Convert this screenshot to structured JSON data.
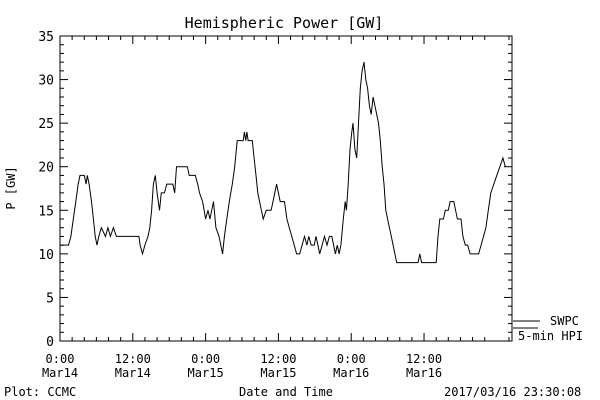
{
  "chart_data": {
    "type": "line",
    "title": "Hemispheric Power [GW]",
    "xlabel": "Date and Time",
    "ylabel": "P [GW]",
    "ylim": [
      0,
      35
    ],
    "yticks": [
      0,
      5,
      10,
      15,
      20,
      25,
      30,
      35
    ],
    "xlim_hours": [
      0,
      72
    ],
    "xticks": [
      {
        "hour": 0,
        "time": "0:00",
        "date": "Mar14"
      },
      {
        "hour": 12,
        "time": "12:00",
        "date": "Mar14"
      },
      {
        "hour": 24,
        "time": "0:00",
        "date": "Mar15"
      },
      {
        "hour": 36,
        "time": "12:00",
        "date": "Mar15"
      },
      {
        "hour": 48,
        "time": "0:00",
        "date": "Mar16"
      },
      {
        "hour": 60,
        "time": "12:00",
        "date": "Mar16"
      }
    ],
    "grid": false,
    "legend": [
      "SWPC",
      "5-min HPI"
    ],
    "legend_position": "right, outside the plot, near the bottom",
    "series": [
      {
        "name": "5-min HPI",
        "points": [
          [
            0,
            11
          ],
          [
            1.4,
            11
          ],
          [
            1.8,
            12
          ],
          [
            2.2,
            14
          ],
          [
            2.6,
            16
          ],
          [
            3,
            18
          ],
          [
            3.3,
            19
          ],
          [
            4,
            19
          ],
          [
            4.3,
            18
          ],
          [
            4.5,
            19
          ],
          [
            4.8,
            18
          ],
          [
            5.2,
            16
          ],
          [
            5.5,
            14
          ],
          [
            5.8,
            12
          ],
          [
            6.1,
            11
          ],
          [
            6.4,
            12
          ],
          [
            6.8,
            13
          ],
          [
            7.5,
            12
          ],
          [
            7.9,
            13
          ],
          [
            8.3,
            12
          ],
          [
            8.8,
            13
          ],
          [
            9.3,
            12
          ],
          [
            13,
            12
          ],
          [
            13.2,
            11
          ],
          [
            13.6,
            10
          ],
          [
            14,
            11
          ],
          [
            14.5,
            12
          ],
          [
            14.8,
            13
          ],
          [
            15.1,
            15
          ],
          [
            15.4,
            18
          ],
          [
            15.7,
            19
          ],
          [
            16,
            17
          ],
          [
            16.4,
            15
          ],
          [
            16.7,
            17
          ],
          [
            17.2,
            17
          ],
          [
            17.6,
            18
          ],
          [
            18.6,
            18
          ],
          [
            18.9,
            17
          ],
          [
            19.2,
            20
          ],
          [
            21,
            20
          ],
          [
            21.3,
            19
          ],
          [
            22.3,
            19
          ],
          [
            22.7,
            18
          ],
          [
            23,
            17
          ],
          [
            23.5,
            16
          ],
          [
            24,
            14
          ],
          [
            24.4,
            15
          ],
          [
            24.7,
            14
          ],
          [
            25,
            15
          ],
          [
            25.3,
            16
          ],
          [
            25.7,
            13
          ],
          [
            26.2,
            12
          ],
          [
            26.5,
            11
          ],
          [
            26.8,
            10
          ],
          [
            27.1,
            12
          ],
          [
            27.5,
            14
          ],
          [
            27.9,
            16
          ],
          [
            28.4,
            18
          ],
          [
            28.8,
            20
          ],
          [
            29.2,
            23
          ],
          [
            30.2,
            23
          ],
          [
            30.4,
            24
          ],
          [
            30.6,
            23
          ],
          [
            30.8,
            24
          ],
          [
            31,
            23
          ],
          [
            31.7,
            23
          ],
          [
            32,
            21
          ],
          [
            32.3,
            19
          ],
          [
            32.6,
            17
          ],
          [
            32.9,
            16
          ],
          [
            33.2,
            15
          ],
          [
            33.5,
            14
          ],
          [
            34,
            15
          ],
          [
            34.4,
            15
          ],
          [
            34.8,
            15
          ],
          [
            35.1,
            16
          ],
          [
            35.4,
            17
          ],
          [
            35.7,
            18
          ],
          [
            36,
            17
          ],
          [
            36.3,
            16
          ],
          [
            36.6,
            16
          ],
          [
            37,
            16
          ],
          [
            37.4,
            14
          ],
          [
            37.8,
            13
          ],
          [
            38.2,
            12
          ],
          [
            38.6,
            11
          ],
          [
            39,
            10
          ],
          [
            39.5,
            10
          ],
          [
            39.9,
            11
          ],
          [
            40.3,
            12
          ],
          [
            40.7,
            11
          ],
          [
            41,
            12
          ],
          [
            41.4,
            11
          ],
          [
            41.9,
            11
          ],
          [
            42.2,
            12
          ],
          [
            42.5,
            11
          ],
          [
            42.8,
            10
          ],
          [
            43.2,
            11
          ],
          [
            43.6,
            12
          ],
          [
            44,
            11
          ],
          [
            44.4,
            12
          ],
          [
            44.8,
            12
          ],
          [
            45.1,
            11
          ],
          [
            45.4,
            10
          ],
          [
            45.7,
            11
          ],
          [
            46,
            10
          ],
          [
            46.3,
            11
          ],
          [
            46.7,
            14
          ],
          [
            47,
            16
          ],
          [
            47.2,
            15
          ],
          [
            47.5,
            18
          ],
          [
            47.8,
            22
          ],
          [
            48.1,
            24
          ],
          [
            48.3,
            25
          ],
          [
            48.6,
            22
          ],
          [
            48.9,
            21
          ],
          [
            49.2,
            25
          ],
          [
            49.5,
            29
          ],
          [
            49.8,
            31
          ],
          [
            50.1,
            32
          ],
          [
            50.4,
            30
          ],
          [
            50.7,
            29
          ],
          [
            51,
            27
          ],
          [
            51.3,
            26
          ],
          [
            51.6,
            28
          ],
          [
            51.9,
            27
          ],
          [
            52.2,
            26
          ],
          [
            52.5,
            25
          ],
          [
            52.8,
            23
          ],
          [
            53.1,
            20
          ],
          [
            53.4,
            18
          ],
          [
            53.7,
            15
          ],
          [
            54,
            14
          ],
          [
            54.3,
            13
          ],
          [
            54.6,
            12
          ],
          [
            54.9,
            11
          ],
          [
            55.2,
            10
          ],
          [
            55.5,
            9
          ],
          [
            59,
            9
          ],
          [
            59.3,
            10
          ],
          [
            59.6,
            9
          ],
          [
            62,
            9
          ],
          [
            62.3,
            12
          ],
          [
            62.6,
            14
          ],
          [
            63.2,
            14
          ],
          [
            63.5,
            15
          ],
          [
            64,
            15
          ],
          [
            64.3,
            16
          ],
          [
            64.9,
            16
          ],
          [
            65.2,
            15
          ],
          [
            65.5,
            14
          ],
          [
            66.1,
            14
          ],
          [
            66.4,
            12
          ],
          [
            66.8,
            11
          ],
          [
            67.2,
            11
          ],
          [
            67.6,
            10
          ],
          [
            69,
            10
          ],
          [
            69.4,
            11
          ],
          [
            69.8,
            12
          ],
          [
            70.2,
            13
          ],
          [
            70.6,
            15
          ],
          [
            71,
            17
          ],
          [
            71.5,
            18
          ],
          [
            72,
            19
          ],
          [
            72.5,
            20
          ],
          [
            73,
            21
          ],
          [
            73.4,
            20
          ]
        ]
      }
    ]
  },
  "footer": {
    "plot_credit": "Plot: CCMC",
    "timestamp": "2017/03/16 23:30:08"
  }
}
